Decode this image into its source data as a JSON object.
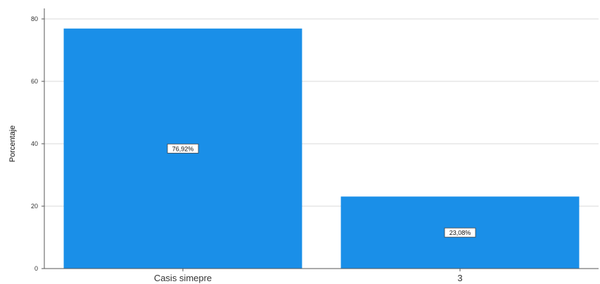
{
  "chart_data": {
    "type": "bar",
    "categories": [
      "Casis simepre",
      "3"
    ],
    "values": [
      76.92,
      23.08
    ],
    "data_labels": [
      "76,92%",
      "23,08%"
    ],
    "ylabel": "Porcentaje",
    "xlabel": "",
    "ylim": [
      0,
      80
    ],
    "yticks": [
      "0",
      "20",
      "40",
      "60",
      "80"
    ],
    "grid": true,
    "legend": "none",
    "bar_color": "#1a8fe8",
    "grid_color": "#d9d9d9"
  }
}
